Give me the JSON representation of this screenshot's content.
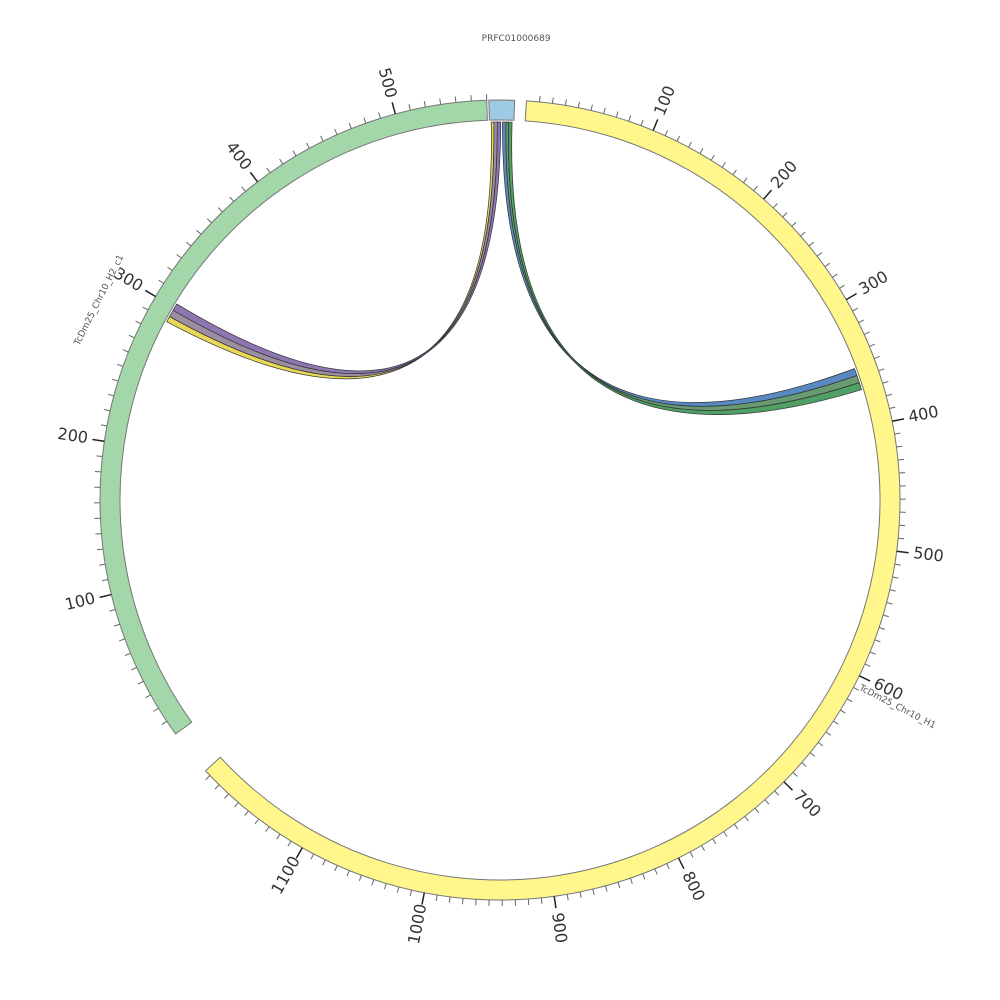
{
  "segments": [
    {
      "id": "h1",
      "name": "TcDm25_Chr10_H1",
      "length": 1195,
      "color": "#fff78c"
    },
    {
      "id": "h2",
      "name": "TcDm25_Chr10_H2_c1",
      "length": 560,
      "color": "#a3d6a8"
    },
    {
      "id": "prfc",
      "name": "PRFC01000689",
      "length": 28,
      "color": "#9dcbe3"
    }
  ],
  "ticks": {
    "h1": {
      "major": [
        100,
        200,
        300,
        400,
        500,
        600,
        700,
        800,
        900,
        1000,
        1100
      ],
      "minor_step": 10
    },
    "h2": {
      "major": [
        100,
        200,
        300,
        400,
        500
      ],
      "minor_step": 10
    },
    "prfc": {
      "major": [],
      "minor_step": 0
    }
  },
  "links": [
    {
      "from": {
        "seg": "prfc",
        "start": 2,
        "end": 5
      },
      "to": {
        "seg": "h2",
        "start": 289,
        "end": 293
      },
      "color": "#e3d23a"
    },
    {
      "from": {
        "seg": "prfc",
        "start": 5,
        "end": 9
      },
      "to": {
        "seg": "h2",
        "start": 293,
        "end": 298
      },
      "color": "#8a7a90"
    },
    {
      "from": {
        "seg": "prfc",
        "start": 9,
        "end": 13
      },
      "to": {
        "seg": "h2",
        "start": 298,
        "end": 303
      },
      "color": "#7a5ea6"
    },
    {
      "from": {
        "seg": "prfc",
        "start": 15,
        "end": 19
      },
      "to": {
        "seg": "h1",
        "start": 352,
        "end": 358
      },
      "color": "#3b74b8"
    },
    {
      "from": {
        "seg": "prfc",
        "start": 19,
        "end": 22
      },
      "to": {
        "seg": "h1",
        "start": 358,
        "end": 364
      },
      "color": "#4f8a5a"
    },
    {
      "from": {
        "seg": "prfc",
        "start": 22,
        "end": 26
      },
      "to": {
        "seg": "h1",
        "start": 364,
        "end": 370
      },
      "color": "#2f8f4a"
    }
  ]
}
